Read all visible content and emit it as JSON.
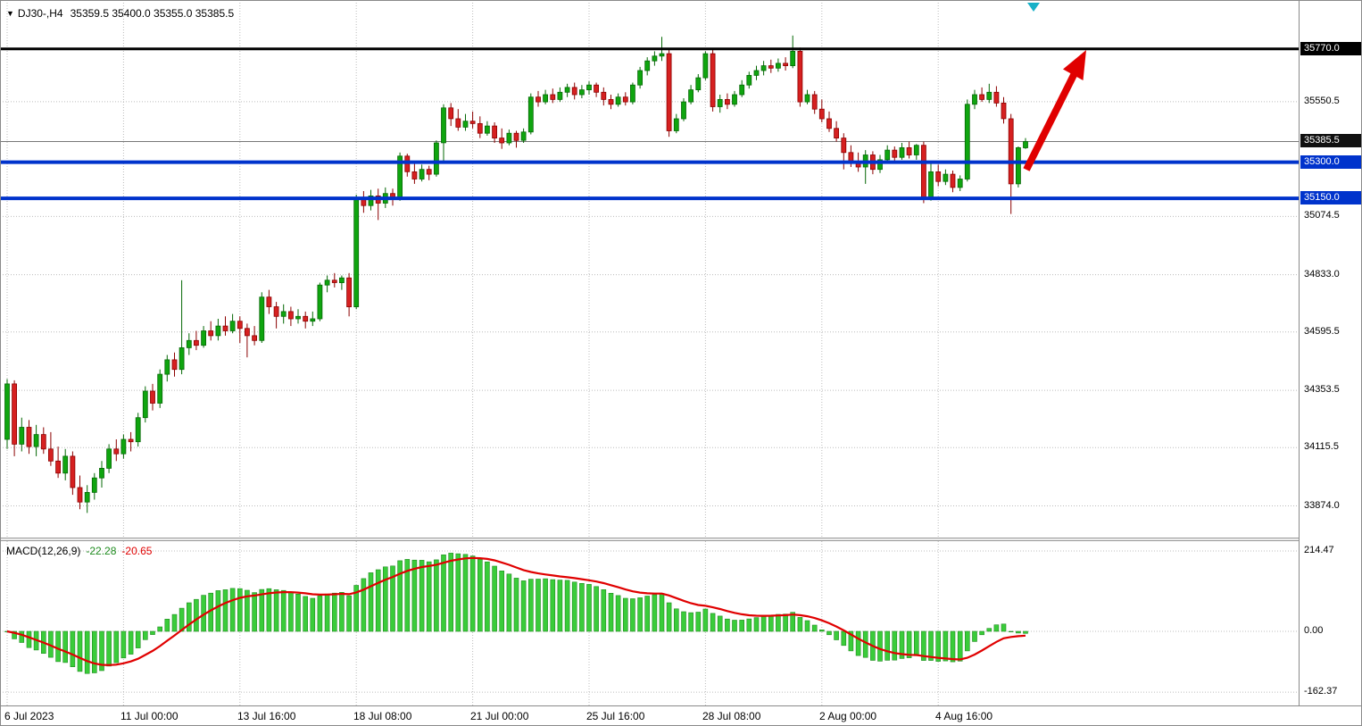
{
  "header": {
    "symbol": "DJ30-,H4",
    "quote": "35359.5 35400.0 35355.0 35385.5"
  },
  "chart_data": {
    "type": "candlestick",
    "symbol": "DJ30-",
    "timeframe": "H4",
    "ylim": [
      33750,
      35880
    ],
    "y_ticks": [
      "35550.5",
      "35074.5",
      "34833.0",
      "34595.5",
      "34353.5",
      "34115.5",
      "33874.0"
    ],
    "x_tick_indices": [
      0,
      16,
      32,
      48,
      64,
      80,
      96,
      112,
      128
    ],
    "x_tick_labels": [
      "6 Jul 2023",
      "11 Jul 00:00",
      "13 Jul 16:00",
      "18 Jul 08:00",
      "21 Jul 00:00",
      "25 Jul 16:00",
      "28 Jul 08:00",
      "2 Aug 00:00",
      "4 Aug 16:00"
    ],
    "price_lines": [
      {
        "price": 35770.0,
        "label": "35770.0",
        "color_key": "level_black",
        "width": 3
      },
      {
        "price": 35300.0,
        "label": "35300.0",
        "color_key": "level_blue",
        "width": 4
      },
      {
        "price": 35150.0,
        "label": "35150.0",
        "color_key": "level_blue",
        "width": 4
      }
    ],
    "current_price": {
      "price": 35385.5,
      "label": "35385.5"
    },
    "annotation": {
      "type": "arrow-up-right",
      "color": "#e00000"
    },
    "indicator": {
      "label": "MACD(12,26,9)",
      "value_label": "-22.28",
      "signal_label": "-20.65",
      "params": [
        12,
        26,
        9
      ],
      "y_ticks": [
        "214.47",
        "0.00",
        "-162.37"
      ]
    },
    "colors": {
      "background": "#ffffff",
      "grid": "#bcbcbc",
      "candle_up": "#0fa50f",
      "candle_up_border": "#056805",
      "candle_down": "#d62020",
      "candle_down_border": "#8b0000",
      "macd_histogram": "#3acc3a",
      "macd_histogram_border": "#1e8b1e",
      "macd_signal": "#e00000",
      "level_blue": "#0033cc",
      "level_black": "#000000",
      "current_price_line": "#777777",
      "current_price_badge": "#111111",
      "arrow": "#e00000",
      "shift_marker": "#17b1c8"
    },
    "candles": [
      [
        34150,
        34400,
        34110,
        34380
      ],
      [
        34380,
        34395,
        34080,
        34130
      ],
      [
        34130,
        34240,
        34100,
        34200
      ],
      [
        34200,
        34230,
        34090,
        34120
      ],
      [
        34120,
        34210,
        34080,
        34170
      ],
      [
        34170,
        34200,
        34090,
        34110
      ],
      [
        34110,
        34180,
        34040,
        34060
      ],
      [
        34060,
        34120,
        33990,
        34010
      ],
      [
        34010,
        34110,
        33980,
        34080
      ],
      [
        34080,
        34100,
        33920,
        33950
      ],
      [
        33950,
        34000,
        33860,
        33890
      ],
      [
        33890,
        33960,
        33845,
        33930
      ],
      [
        33930,
        34010,
        33900,
        33990
      ],
      [
        33990,
        34060,
        33950,
        34030
      ],
      [
        34030,
        34130,
        34010,
        34110
      ],
      [
        34110,
        34150,
        34060,
        34090
      ],
      [
        34090,
        34170,
        34070,
        34150
      ],
      [
        34150,
        34180,
        34100,
        34140
      ],
      [
        34140,
        34260,
        34120,
        34240
      ],
      [
        34240,
        34370,
        34220,
        34350
      ],
      [
        34350,
        34380,
        34270,
        34300
      ],
      [
        34300,
        34440,
        34280,
        34420
      ],
      [
        34420,
        34500,
        34390,
        34480
      ],
      [
        34480,
        34510,
        34410,
        34440
      ],
      [
        34440,
        34810,
        34420,
        34530
      ],
      [
        34530,
        34590,
        34500,
        34560
      ],
      [
        34560,
        34600,
        34520,
        34540
      ],
      [
        34540,
        34620,
        34530,
        34600
      ],
      [
        34600,
        34640,
        34560,
        34580
      ],
      [
        34580,
        34650,
        34560,
        34620
      ],
      [
        34620,
        34660,
        34580,
        34600
      ],
      [
        34600,
        34670,
        34590,
        34640
      ],
      [
        34640,
        34660,
        34550,
        34610
      ],
      [
        34610,
        34630,
        34490,
        34580
      ],
      [
        34580,
        34620,
        34540,
        34560
      ],
      [
        34560,
        34760,
        34550,
        34740
      ],
      [
        34740,
        34770,
        34670,
        34700
      ],
      [
        34700,
        34720,
        34610,
        34660
      ],
      [
        34660,
        34710,
        34630,
        34680
      ],
      [
        34680,
        34700,
        34620,
        34650
      ],
      [
        34650,
        34690,
        34630,
        34660
      ],
      [
        34660,
        34680,
        34610,
        34640
      ],
      [
        34640,
        34680,
        34620,
        34650
      ],
      [
        34650,
        34800,
        34640,
        34790
      ],
      [
        34790,
        34830,
        34760,
        34810
      ],
      [
        34810,
        34840,
        34780,
        34800
      ],
      [
        34800,
        34830,
        34770,
        34820
      ],
      [
        34820,
        34840,
        34660,
        34700
      ],
      [
        34700,
        35165,
        34690,
        35150
      ],
      [
        35150,
        35180,
        35090,
        35120
      ],
      [
        35120,
        35185,
        35100,
        35160
      ],
      [
        35160,
        35190,
        35060,
        35130
      ],
      [
        35130,
        35195,
        35110,
        35170
      ],
      [
        35170,
        35190,
        35120,
        35150
      ],
      [
        35150,
        35340,
        35140,
        35325
      ],
      [
        35325,
        35335,
        35240,
        35260
      ],
      [
        35260,
        35300,
        35210,
        35230
      ],
      [
        35230,
        35290,
        35220,
        35270
      ],
      [
        35270,
        35285,
        35225,
        35250
      ],
      [
        35250,
        35390,
        35240,
        35380
      ],
      [
        35380,
        35540,
        35305,
        35525
      ],
      [
        35525,
        35545,
        35450,
        35480
      ],
      [
        35480,
        35520,
        35430,
        35445
      ],
      [
        35445,
        35500,
        35430,
        35470
      ],
      [
        35470,
        35510,
        35440,
        35460
      ],
      [
        35460,
        35490,
        35400,
        35420
      ],
      [
        35420,
        35470,
        35410,
        35450
      ],
      [
        35450,
        35465,
        35380,
        35400
      ],
      [
        35400,
        35440,
        35355,
        35380
      ],
      [
        35380,
        35435,
        35370,
        35420
      ],
      [
        35420,
        35430,
        35360,
        35390
      ],
      [
        35390,
        35440,
        35380,
        35425
      ],
      [
        35425,
        35585,
        35415,
        35570
      ],
      [
        35570,
        35595,
        35530,
        35550
      ],
      [
        35550,
        35600,
        35540,
        35580
      ],
      [
        35580,
        35605,
        35545,
        35560
      ],
      [
        35560,
        35610,
        35550,
        35590
      ],
      [
        35590,
        35625,
        35570,
        35610
      ],
      [
        35610,
        35630,
        35560,
        35580
      ],
      [
        35580,
        35620,
        35565,
        35600
      ],
      [
        35600,
        35635,
        35580,
        35620
      ],
      [
        35620,
        35630,
        35570,
        35590
      ],
      [
        35590,
        35610,
        35535,
        35560
      ],
      [
        35560,
        35580,
        35520,
        35540
      ],
      [
        35540,
        35585,
        35530,
        35570
      ],
      [
        35570,
        35590,
        35535,
        35550
      ],
      [
        35550,
        35630,
        35540,
        35620
      ],
      [
        35620,
        35695,
        35605,
        35680
      ],
      [
        35680,
        35735,
        35660,
        35720
      ],
      [
        35720,
        35760,
        35700,
        35740
      ],
      [
        35740,
        35820,
        35720,
        35750
      ],
      [
        35750,
        35765,
        35405,
        35430
      ],
      [
        35430,
        35500,
        35420,
        35480
      ],
      [
        35480,
        35565,
        35470,
        35550
      ],
      [
        35550,
        35620,
        35540,
        35600
      ],
      [
        35600,
        35665,
        35590,
        35650
      ],
      [
        35650,
        35760,
        35640,
        35750
      ],
      [
        35750,
        35765,
        35510,
        35530
      ],
      [
        35530,
        35580,
        35505,
        35560
      ],
      [
        35560,
        35585,
        35520,
        35540
      ],
      [
        35540,
        35595,
        35530,
        35580
      ],
      [
        35580,
        35640,
        35570,
        35620
      ],
      [
        35620,
        35675,
        35605,
        35660
      ],
      [
        35660,
        35700,
        35640,
        35680
      ],
      [
        35680,
        35720,
        35660,
        35700
      ],
      [
        35700,
        35725,
        35670,
        35690
      ],
      [
        35690,
        35730,
        35675,
        35710
      ],
      [
        35710,
        35735,
        35680,
        35700
      ],
      [
        35700,
        35825,
        35690,
        35760
      ],
      [
        35760,
        35775,
        35530,
        35550
      ],
      [
        35550,
        35600,
        35540,
        35580
      ],
      [
        35580,
        35595,
        35500,
        35520
      ],
      [
        35520,
        35560,
        35465,
        35480
      ],
      [
        35480,
        35510,
        35425,
        35440
      ],
      [
        35440,
        35470,
        35385,
        35400
      ],
      [
        35400,
        35420,
        35270,
        35340
      ],
      [
        35340,
        35370,
        35280,
        35300
      ],
      [
        35300,
        35340,
        35260,
        35280
      ],
      [
        35280,
        35350,
        35210,
        35330
      ],
      [
        35330,
        35345,
        35250,
        35270
      ],
      [
        35270,
        35330,
        35255,
        35310
      ],
      [
        35310,
        35370,
        35300,
        35350
      ],
      [
        35350,
        35365,
        35300,
        35320
      ],
      [
        35320,
        35380,
        35310,
        35360
      ],
      [
        35360,
        35385,
        35315,
        35330
      ],
      [
        35330,
        35375,
        35310,
        35370
      ],
      [
        35370,
        35385,
        35130,
        35150
      ],
      [
        35150,
        35300,
        35140,
        35260
      ],
      [
        35260,
        35290,
        35200,
        35220
      ],
      [
        35220,
        35270,
        35205,
        35250
      ],
      [
        35250,
        35265,
        35175,
        35195
      ],
      [
        35195,
        35245,
        35180,
        35230
      ],
      [
        35230,
        35560,
        35220,
        35540
      ],
      [
        35540,
        35600,
        35520,
        35580
      ],
      [
        35580,
        35610,
        35550,
        35560
      ],
      [
        35560,
        35625,
        35545,
        35590
      ],
      [
        35590,
        35615,
        35530,
        35545
      ],
      [
        35545,
        35570,
        35460,
        35480
      ],
      [
        35480,
        35500,
        35085,
        35210
      ],
      [
        35210,
        35365,
        35195,
        35360
      ],
      [
        35359.5,
        35400.0,
        35355.0,
        35385.5
      ]
    ]
  }
}
